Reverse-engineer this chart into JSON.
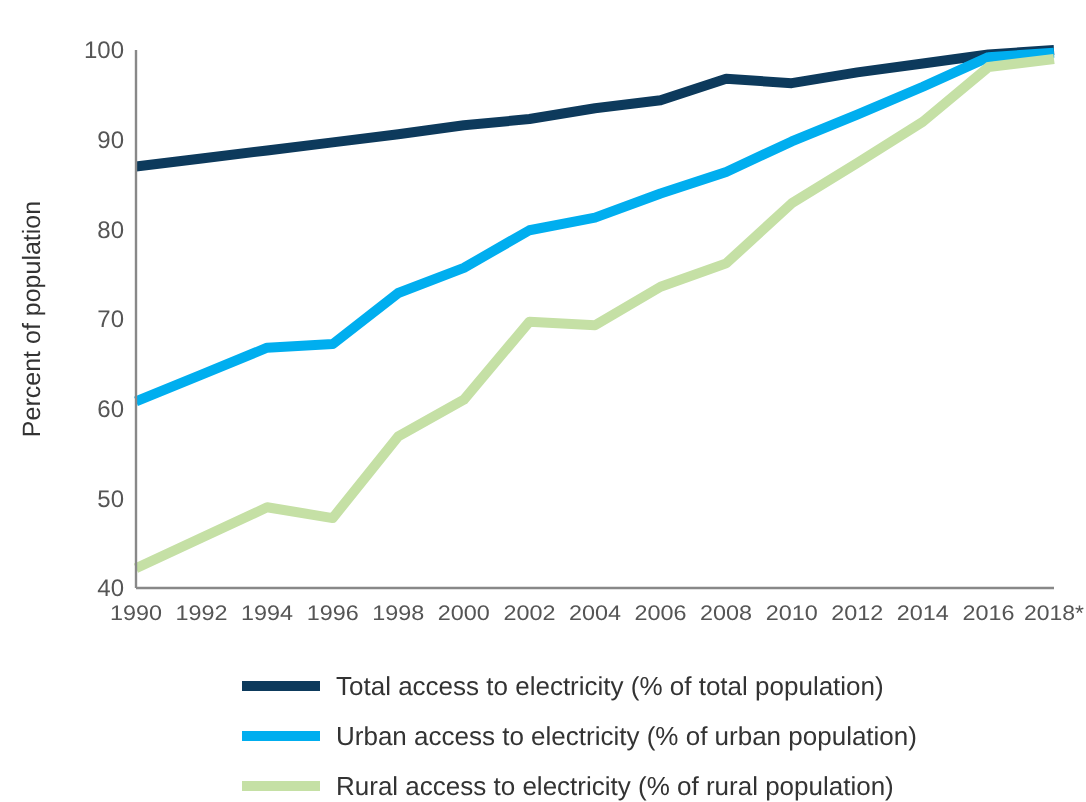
{
  "chart_data": {
    "type": "line",
    "ylabel": "Percent of population",
    "x": [
      1990,
      1992,
      1994,
      1996,
      1998,
      2000,
      2002,
      2004,
      2006,
      2008,
      2010,
      2012,
      2014,
      2016,
      2018
    ],
    "xlim": [
      1990,
      2018
    ],
    "xticks": [
      1990,
      1992,
      1994,
      1996,
      1998,
      2000,
      2002,
      2004,
      2006,
      2008,
      2010,
      2012,
      2014,
      2016,
      {
        "value": 2018,
        "label": "2018*"
      }
    ],
    "ylim": [
      40,
      100
    ],
    "yticks": [
      40,
      50,
      60,
      70,
      80,
      90,
      100
    ],
    "series": [
      {
        "name": "Total access to electricity (% of total population)",
        "color": "#0d3a5c",
        "values": [
          87.0,
          87.9,
          88.8,
          89.7,
          90.6,
          91.6,
          92.3,
          93.5,
          94.4,
          96.8,
          96.3,
          97.5,
          98.5,
          99.5,
          100
        ]
      },
      {
        "name": "Urban access to electricity (% of urban population)",
        "color": "#00aeef",
        "values": [
          60.8,
          63.8,
          66.8,
          67.2,
          72.9,
          75.7,
          79.9,
          81.3,
          84.0,
          86.4,
          89.8,
          92.8,
          95.9,
          99.2,
          99.7
        ]
      },
      {
        "name": "Rural access to electricity (% of rural population)",
        "color": "#c5e0a5",
        "values": [
          42.2,
          45.6,
          49.0,
          47.8,
          56.9,
          61.0,
          69.7,
          69.3,
          73.6,
          76.2,
          82.9,
          87.4,
          92.0,
          98.1,
          99.0
        ]
      }
    ],
    "grid": false,
    "legend": "bottom",
    "marker": "none",
    "line_style": "solid"
  }
}
